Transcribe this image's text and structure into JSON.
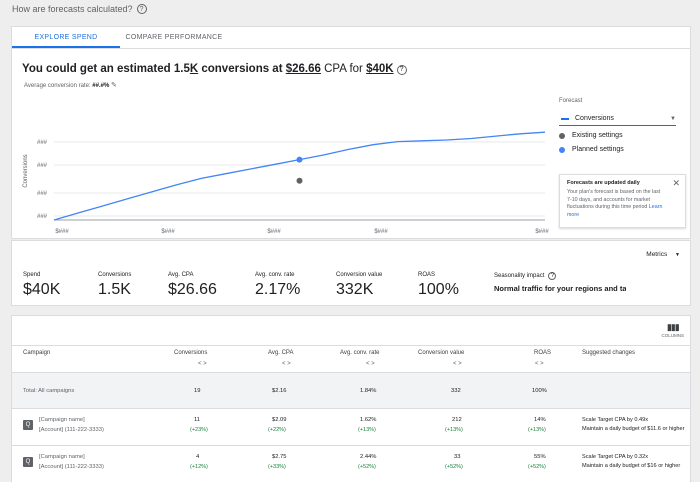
{
  "help": {
    "text": "How are forecasts calculated?"
  },
  "tabs": [
    {
      "label": "EXPLORE SPEND",
      "active": true
    },
    {
      "label": "COMPARE PERFORMANCE",
      "active": false
    }
  ],
  "headline": {
    "prefix": "You could get an estimated 1.5",
    "k": "K",
    "mid": " conversions at ",
    "cpa": "$26.66",
    "mid2": " CPA for ",
    "spend": "$40K"
  },
  "avg_rate": {
    "label": "Average conversion rate: ",
    "value": "##.#%"
  },
  "chart_data": {
    "type": "line",
    "xlabel": "Spend",
    "ylabel": "Conversions",
    "y_ticks": [
      "###",
      "###",
      "###",
      "###"
    ],
    "x_ticks": [
      "$###",
      "$###",
      "$###",
      "$###",
      "$###"
    ],
    "x": [
      0,
      0.05,
      0.1,
      0.15,
      0.2,
      0.25,
      0.3,
      0.35,
      0.4,
      0.45,
      0.5,
      0.55,
      0.6,
      0.65,
      0.7,
      0.75,
      0.8,
      0.85,
      0.9,
      0.95,
      1.0
    ],
    "series": [
      {
        "values": [
          0,
          0.09,
          0.18,
          0.27,
          0.36,
          0.45,
          0.53,
          0.59,
          0.65,
          0.71,
          0.77,
          0.83,
          0.9,
          0.96,
          1.0,
          1.01,
          1.02,
          1.04,
          1.07,
          1.1,
          1.12
        ]
      }
    ],
    "points": [
      {
        "name": "Planned settings",
        "x": 0.5,
        "y": 0.77
      },
      {
        "name": "Existing settings",
        "x": 0.5,
        "y": 0.5
      }
    ],
    "xlim": [
      0,
      1
    ],
    "ylim": [
      0,
      1.25
    ]
  },
  "forecast_panel": {
    "label": "Forecast",
    "selected": "Conversions",
    "legend": [
      {
        "label": "Existing settings",
        "color": "#5f6368"
      },
      {
        "label": "Planned settings",
        "color": "#4285f4"
      }
    ],
    "info": {
      "title": "Forecasts are updated daily",
      "body": "Your plan's forecast is based on the last 7-10 days, and accounts for market fluctuations during this time period ",
      "link": "Learn more"
    }
  },
  "metrics": {
    "dropdown": "Metrics",
    "items": [
      {
        "label": "Spend",
        "value": "$40K"
      },
      {
        "label": "Conversions",
        "value": "1.5K"
      },
      {
        "label": "Avg. CPA",
        "value": "$26.66"
      },
      {
        "label": "Avg. conv. rate",
        "value": "2.17%"
      },
      {
        "label": "Conversion value",
        "value": "332K"
      },
      {
        "label": "ROAS",
        "value": "100%"
      }
    ],
    "seasonality": {
      "label": "Seasonality impact",
      "value": "Normal traffic for your regions and targe"
    }
  },
  "table": {
    "columns_label": "COLUMNS",
    "headers": [
      "Campaign",
      "Conversions",
      "Avg. CPA",
      "Avg. conv. rate",
      "Conversion value",
      "ROAS",
      "Suggested changes"
    ],
    "sort_glyph": "< >",
    "total": {
      "label": "Total: All campaigns",
      "values": [
        "19",
        "$2.16",
        "1.84%",
        "332",
        "100%"
      ]
    },
    "rows": [
      {
        "name": "[Campaign name]",
        "account": "[Account] (111-222-3333)",
        "values": [
          "11",
          "$2.09",
          "1.62%",
          "212",
          "14%"
        ],
        "deltas": [
          "(+23%)",
          "(+22%)",
          "(+13%)",
          "(+13%)",
          "(+13%)"
        ],
        "suggest1": "Scale Target CPA by 0.49x",
        "suggest2": "Maintain a daily budget of $11.6 or higher"
      },
      {
        "name": "[Campaign name]",
        "account": "[Account] (111-222-3333)",
        "values": [
          "4",
          "$2.75",
          "2.44%",
          "33",
          "55%"
        ],
        "deltas": [
          "(+12%)",
          "(+33%)",
          "(+52%)",
          "(+52%)",
          "(+52%)"
        ],
        "suggest1": "Scale Target CPA by 0.32x",
        "suggest2": "Maintain a daily budget of $16 or higher"
      }
    ]
  }
}
